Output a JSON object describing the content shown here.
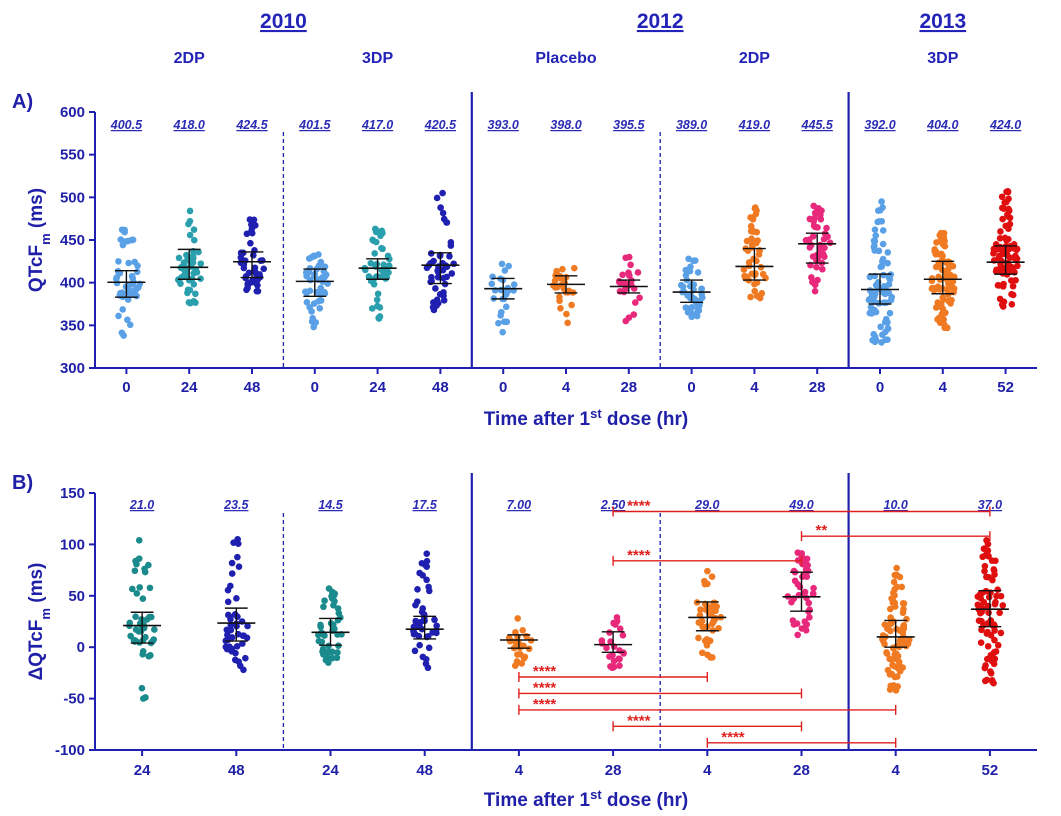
{
  "chart_data": [
    {
      "type": "scatter",
      "panel_label": "A)",
      "ylabel_main": "QTcF",
      "ylabel_sub": "m",
      "ylabel_unit": " (ms)",
      "xlabel_main": "Time after 1",
      "xlabel_sup": "st",
      "xlabel_rest": " dose (hr)",
      "ylim": [
        300,
        600
      ],
      "yticks": [
        "300",
        "350",
        "400",
        "450",
        "500",
        "550",
        "600"
      ],
      "years": [
        {
          "label": "2010",
          "span": [
            0,
            5
          ]
        },
        {
          "label": "2012",
          "span": [
            6,
            11
          ]
        },
        {
          "label": "2013",
          "span": [
            12,
            14
          ]
        }
      ],
      "groups": [
        "2DP",
        "3DP",
        "Placebo",
        "2DP",
        "3DP"
      ],
      "categories": [
        "0",
        "24",
        "48",
        "0",
        "24",
        "48",
        "0",
        "4",
        "28",
        "0",
        "4",
        "28",
        "0",
        "4",
        "52"
      ],
      "medians": [
        "400.5",
        "418.0",
        "424.5",
        "401.5",
        "417.0",
        "420.5",
        "393.0",
        "398.0",
        "395.5",
        "389.0",
        "419.0",
        "445.5",
        "392.0",
        "404.0",
        "424.0"
      ],
      "series": [
        {
          "median": 400.5,
          "q1": 383,
          "q3": 414,
          "min": 338,
          "max": 462,
          "color": "#5aa0e6",
          "n": 45
        },
        {
          "median": 418.0,
          "q1": 404,
          "q3": 439,
          "min": 376,
          "max": 484,
          "color": "#2a9fad",
          "n": 45
        },
        {
          "median": 424.5,
          "q1": 406,
          "q3": 436,
          "min": 390,
          "max": 474,
          "color": "#1f1fb0",
          "n": 45
        },
        {
          "median": 401.5,
          "q1": 384,
          "q3": 416,
          "min": 348,
          "max": 433,
          "color": "#5aa0e6",
          "n": 45
        },
        {
          "median": 417.0,
          "q1": 404,
          "q3": 428,
          "min": 358,
          "max": 463,
          "color": "#2a9fad",
          "n": 45
        },
        {
          "median": 420.5,
          "q1": 399,
          "q3": 435,
          "min": 368,
          "max": 505,
          "color": "#1f1fb0",
          "n": 45
        },
        {
          "median": 393.0,
          "q1": 381,
          "q3": 405,
          "min": 342,
          "max": 422,
          "color": "#5aa0e6",
          "n": 25
        },
        {
          "median": 398.0,
          "q1": 388,
          "q3": 408,
          "min": 353,
          "max": 417,
          "color": "#f07a22",
          "n": 25
        },
        {
          "median": 395.5,
          "q1": 388,
          "q3": 403,
          "min": 355,
          "max": 430,
          "color": "#e8287a",
          "n": 25
        },
        {
          "median": 389.0,
          "q1": 377,
          "q3": 403,
          "min": 360,
          "max": 428,
          "color": "#5aa0e6",
          "n": 45
        },
        {
          "median": 419.0,
          "q1": 403,
          "q3": 440,
          "min": 382,
          "max": 488,
          "color": "#f07a22",
          "n": 45
        },
        {
          "median": 445.5,
          "q1": 423,
          "q3": 458,
          "min": 390,
          "max": 490,
          "color": "#e8287a",
          "n": 45
        },
        {
          "median": 392.0,
          "q1": 375,
          "q3": 410,
          "min": 330,
          "max": 495,
          "color": "#5aa0e6",
          "n": 80
        },
        {
          "median": 404.0,
          "q1": 387,
          "q3": 425,
          "min": 347,
          "max": 458,
          "color": "#f07a22",
          "n": 80
        },
        {
          "median": 424.0,
          "q1": 410,
          "q3": 443,
          "min": 372,
          "max": 507,
          "color": "#e00f0f",
          "n": 80
        }
      ],
      "separators": [
        {
          "after": 2,
          "style": "dashed"
        },
        {
          "after": 5,
          "style": "solid"
        },
        {
          "after": 8,
          "style": "dashed"
        },
        {
          "after": 11,
          "style": "solid"
        }
      ]
    },
    {
      "type": "scatter",
      "panel_label": "B)",
      "ylabel_main": "ΔQTcF",
      "ylabel_sub": "m",
      "ylabel_unit": " (ms)",
      "xlabel_main": "Time after 1",
      "xlabel_sup": "st",
      "xlabel_rest": " dose (hr)",
      "ylim": [
        -100,
        150
      ],
      "yticks": [
        "-100",
        "-50",
        "0",
        "50",
        "100",
        "150"
      ],
      "categories": [
        "24",
        "48",
        "24",
        "48",
        "4",
        "28",
        "4",
        "28",
        "4",
        "52"
      ],
      "medians": [
        "21.0",
        "23.5",
        "14.5",
        "17.5",
        "7.00",
        "2.50",
        "29.0",
        "49.0",
        "10.0",
        "37.0"
      ],
      "series": [
        {
          "median": 21.0,
          "q1": 4,
          "q3": 34,
          "min": -50,
          "max": 104,
          "color": "#1a8a8c",
          "n": 45
        },
        {
          "median": 23.5,
          "q1": 6,
          "q3": 38,
          "min": -22,
          "max": 105,
          "color": "#1f1fb0",
          "n": 45
        },
        {
          "median": 14.5,
          "q1": 2,
          "q3": 28,
          "min": -15,
          "max": 57,
          "color": "#1a8a8c",
          "n": 45
        },
        {
          "median": 17.5,
          "q1": 8,
          "q3": 30,
          "min": -20,
          "max": 91,
          "color": "#1f1fb0",
          "n": 45
        },
        {
          "median": 7.0,
          "q1": -1,
          "q3": 12,
          "min": -18,
          "max": 28,
          "color": "#f07a22",
          "n": 25
        },
        {
          "median": 2.5,
          "q1": -5,
          "q3": 15,
          "min": -20,
          "max": 29,
          "color": "#e8287a",
          "n": 25
        },
        {
          "median": 29.0,
          "q1": 16,
          "q3": 44,
          "min": -10,
          "max": 74,
          "color": "#f07a22",
          "n": 45
        },
        {
          "median": 49.0,
          "q1": 35,
          "q3": 73,
          "min": 12,
          "max": 92,
          "color": "#e8287a",
          "n": 45
        },
        {
          "median": 10.0,
          "q1": 0,
          "q3": 26,
          "min": -42,
          "max": 77,
          "color": "#f07a22",
          "n": 80
        },
        {
          "median": 37.0,
          "q1": 20,
          "q3": 55,
          "min": -35,
          "max": 104,
          "color": "#e00f0f",
          "n": 80
        }
      ],
      "separators": [
        {
          "after": 1,
          "style": "dashed"
        },
        {
          "after": 3,
          "style": "solid"
        },
        {
          "after": 5,
          "style": "dashed"
        },
        {
          "after": 7,
          "style": "solid"
        }
      ],
      "significance": [
        {
          "from": 5,
          "to": 9,
          "y": 132,
          "label": "****"
        },
        {
          "from": 7,
          "to": 9,
          "y": 108,
          "label": "**"
        },
        {
          "from": 5,
          "to": 7,
          "y": 84,
          "label": "****"
        },
        {
          "from": 4,
          "to": 6,
          "y": -29,
          "label": "****"
        },
        {
          "from": 4,
          "to": 7,
          "y": -45,
          "label": "****"
        },
        {
          "from": 4,
          "to": 8,
          "y": -61,
          "label": "****"
        },
        {
          "from": 5,
          "to": 7,
          "y": -77,
          "label": "****"
        },
        {
          "from": 6,
          "to": 8,
          "y": -93,
          "label": "****"
        }
      ]
    }
  ]
}
